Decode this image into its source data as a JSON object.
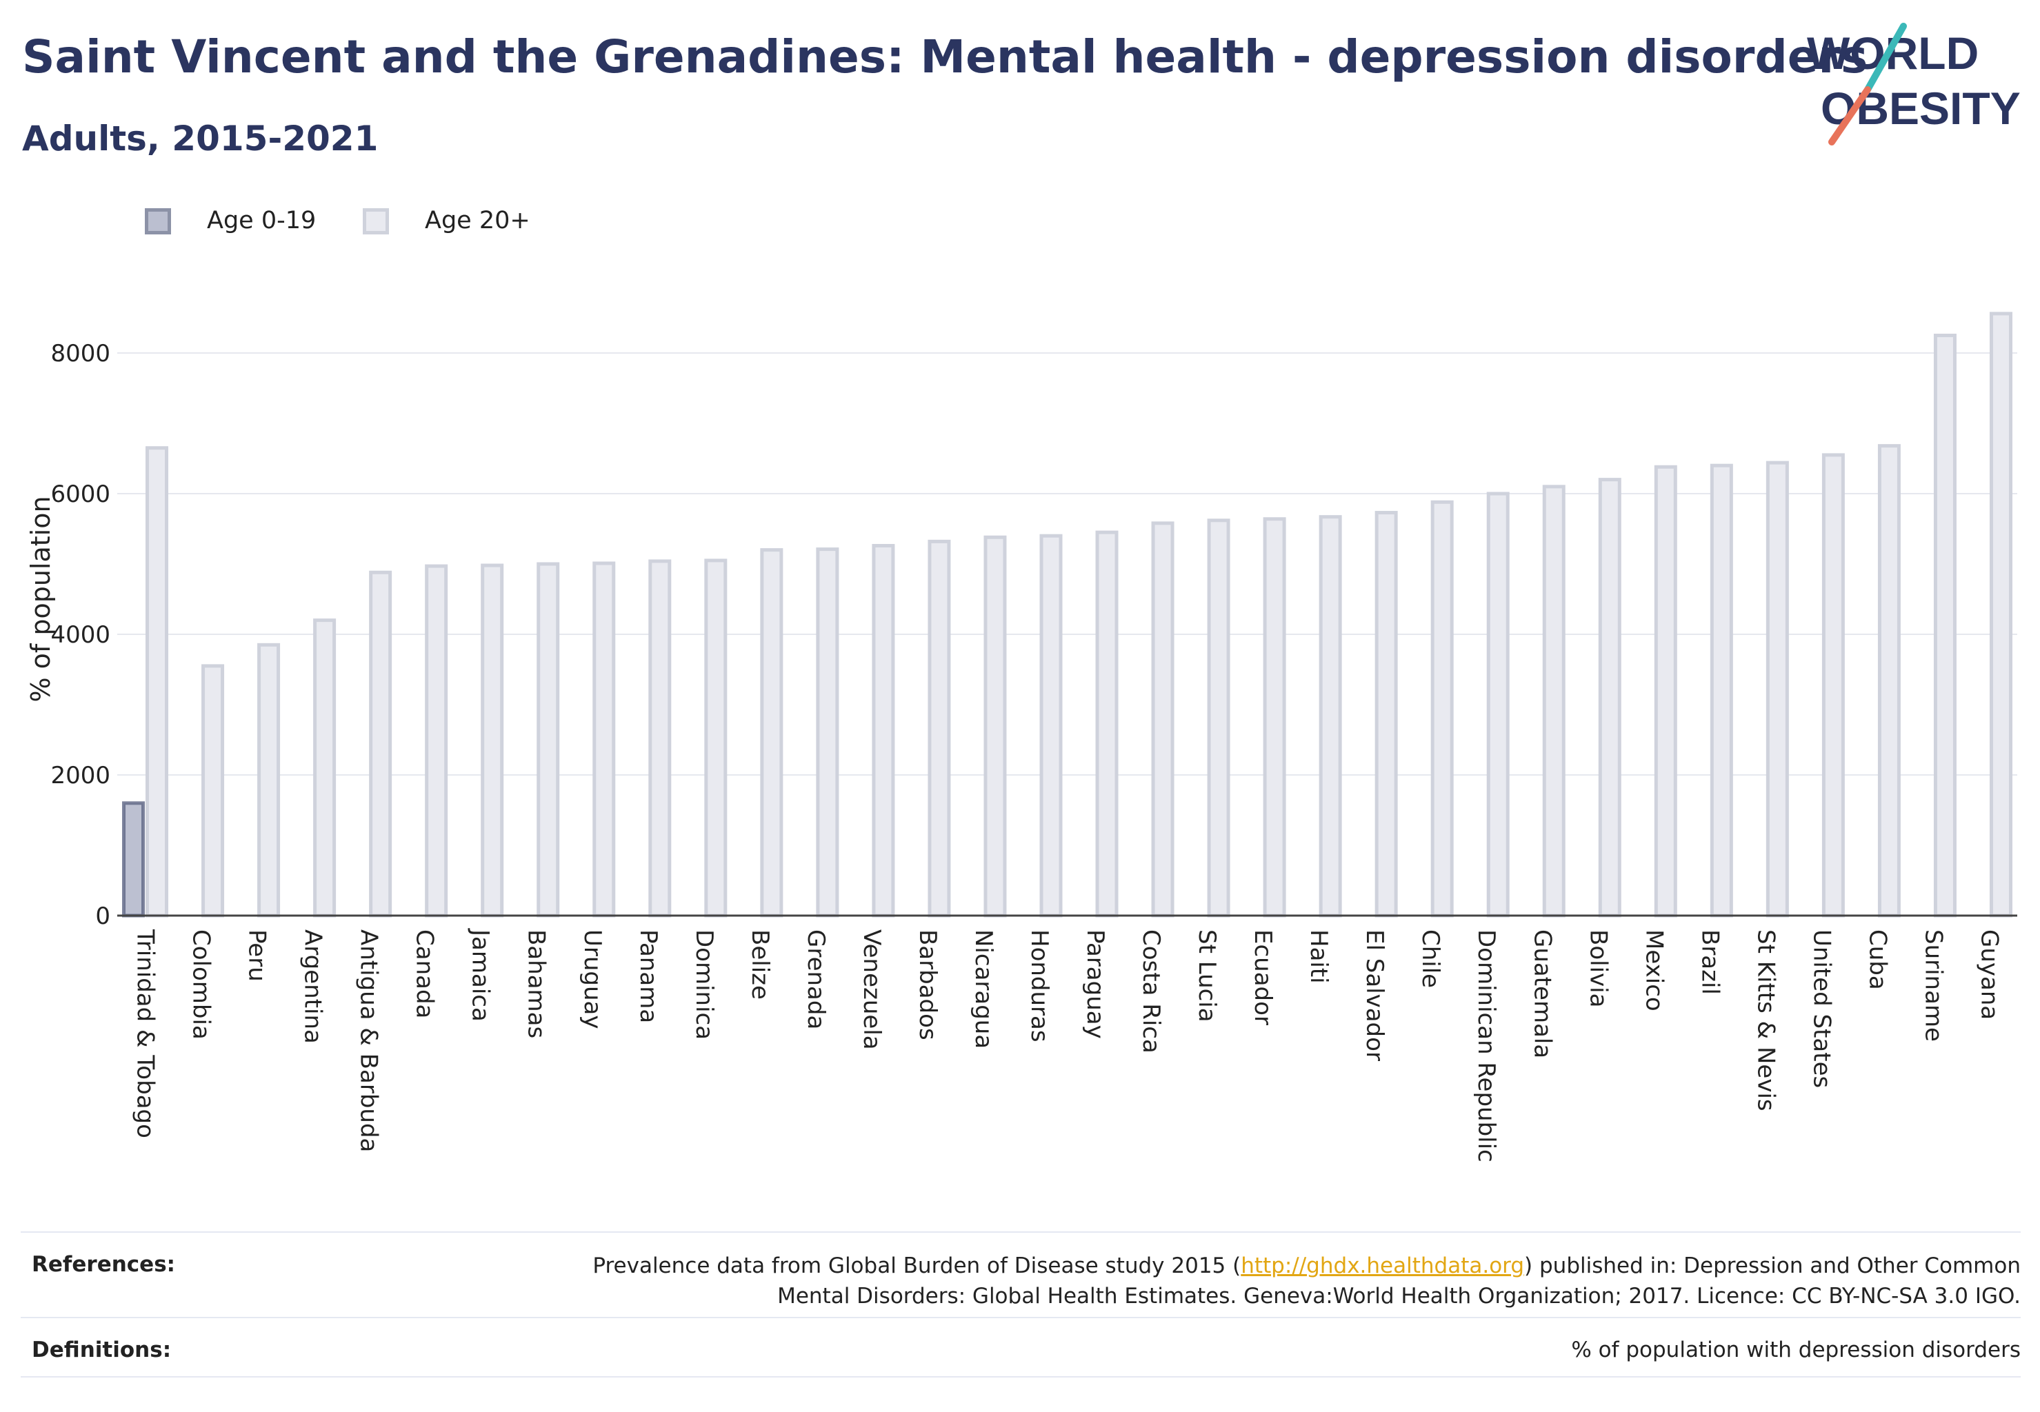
{
  "header": {
    "title": "Saint Vincent and the Grenadines: Mental health - depression disorders",
    "subtitle": "Adults, 2015-2021"
  },
  "logo": {
    "line1": "WORLD",
    "line2": "OBESITY",
    "text_color": "#2b3560",
    "slash_color_top": "#3bb8b8",
    "slash_color_bottom": "#e8735a"
  },
  "colors": {
    "age_0_19": "#9fa5bd",
    "age_0_19_border": "#5c6483",
    "age_20_plus": "#e9eaf0",
    "age_20_plus_border": "#cfd2dc",
    "gridline": "#e6e8ee",
    "axis": "#444444",
    "link": "#e2a613"
  },
  "chart_data": {
    "type": "bar",
    "ylabel": "% of population",
    "ylim": [
      0,
      9000
    ],
    "yticks": [
      0,
      2000,
      4000,
      6000,
      8000
    ],
    "grid": true,
    "legend_position": "top-left",
    "categories": [
      "Trinidad & Tobago",
      "Colombia",
      "Peru",
      "Argentina",
      "Antigua & Barbuda",
      "Canada",
      "Jamaica",
      "Bahamas",
      "Uruguay",
      "Panama",
      "Dominica",
      "Belize",
      "Grenada",
      "Venezuela",
      "Barbados",
      "Nicaragua",
      "Honduras",
      "Paraguay",
      "Costa Rica",
      "St Lucia",
      "Ecuador",
      "Haiti",
      "El Salvador",
      "Chile",
      "Dominican Republic",
      "Guatemala",
      "Bolivia",
      "Mexico",
      "Brazil",
      "St Kitts & Nevis",
      "United States",
      "Cuba",
      "Suriname",
      "Guyana"
    ],
    "series": [
      {
        "name": "Age 0-19",
        "values": [
          1600,
          null,
          null,
          null,
          null,
          null,
          null,
          null,
          null,
          null,
          null,
          null,
          null,
          null,
          null,
          null,
          null,
          null,
          null,
          null,
          null,
          null,
          null,
          null,
          null,
          null,
          null,
          null,
          null,
          null,
          null,
          null,
          null,
          null
        ]
      },
      {
        "name": "Age 20+",
        "values": [
          6650,
          3550,
          3850,
          4200,
          4880,
          4970,
          4980,
          5000,
          5010,
          5040,
          5050,
          5200,
          5210,
          5260,
          5320,
          5380,
          5400,
          5450,
          5580,
          5620,
          5640,
          5670,
          5730,
          5880,
          6000,
          6100,
          6200,
          6380,
          6400,
          6440,
          6550,
          6680,
          8250,
          8560
        ]
      }
    ]
  },
  "footer": {
    "references_label": "References:",
    "references_text_before": "Prevalence data from Global Burden of Disease study 2015 (",
    "references_link": "http://ghdx.healthdata.org",
    "references_text_after": ") published in: Depression and Other Common",
    "references_line2": "Mental Disorders: Global Health Estimates. Geneva:World Health Organization; 2017. Licence: CC BY-NC-SA 3.0 IGO.",
    "definitions_label": "Definitions:",
    "definitions_text": "% of population with depression disorders"
  }
}
